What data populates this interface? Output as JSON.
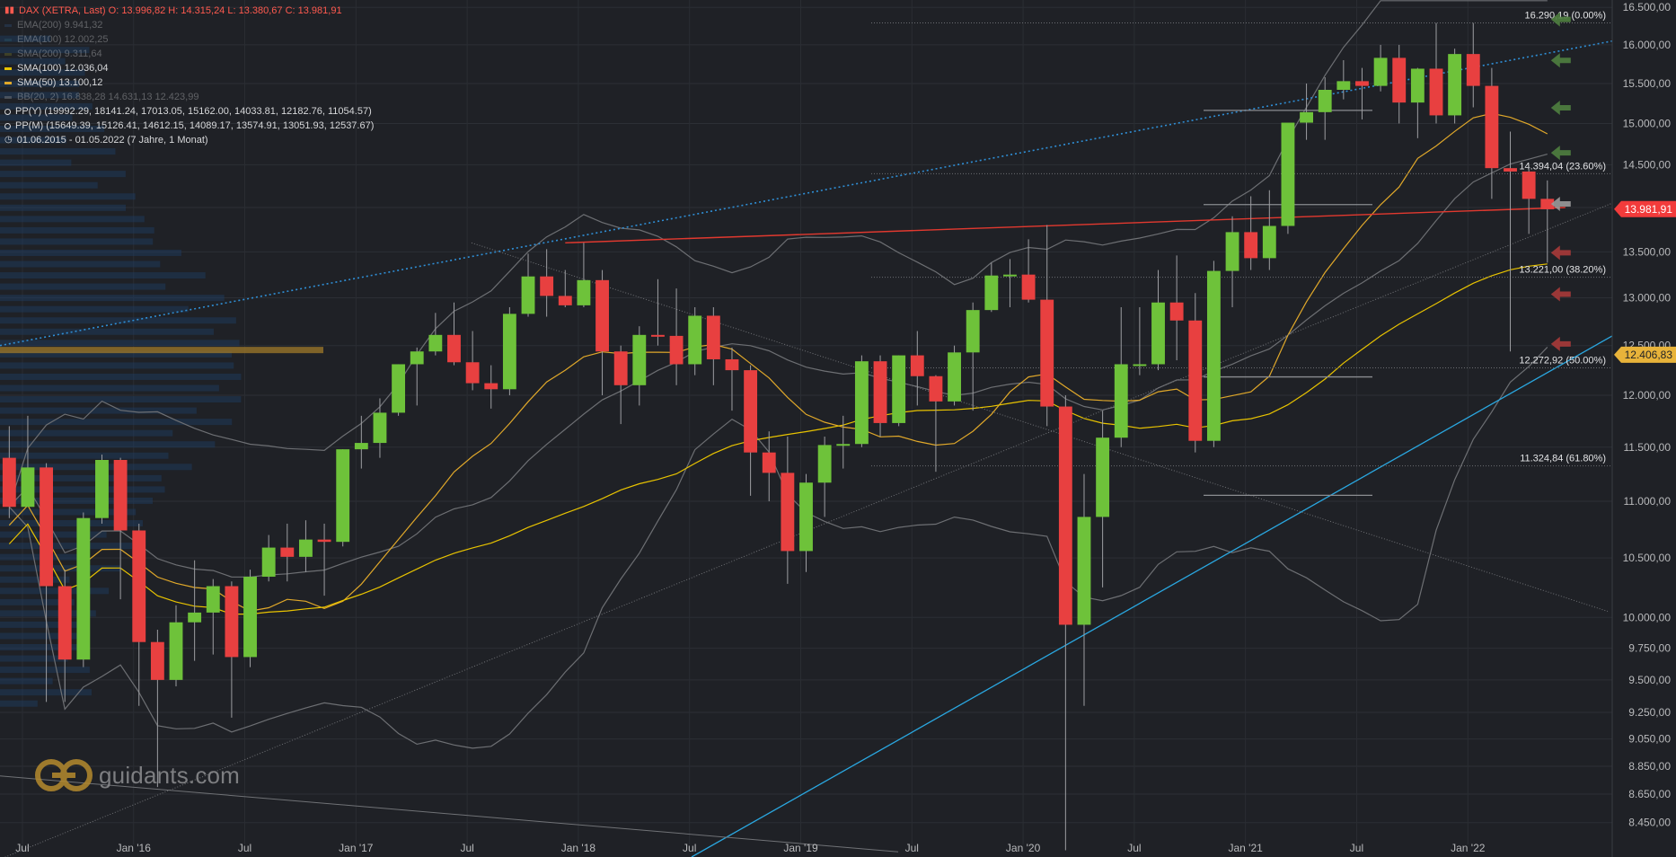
{
  "legend": {
    "title": "DAX (XETRA, Last)  O: 13.996,82  H: 14.315,24  L: 13.380,67  C: 13.981,91",
    "items": [
      {
        "label": "EMA(200)  9.941,32",
        "color": "#2f4f7a",
        "dim": true
      },
      {
        "label": "EMA(100)  12.002,25",
        "color": "#2f5d6b",
        "dim": true
      },
      {
        "label": "SMA(200)  9.311,64",
        "color": "#7a7a2a",
        "dim": true
      },
      {
        "label": "SMA(100)  12.036,04",
        "color": "#e8c300",
        "dim": false
      },
      {
        "label": "SMA(50)  13.100,12",
        "color": "#e0a82a",
        "dim": false
      },
      {
        "label": "BB(20, 2)  16.838,28  14.631,13  12.423,99",
        "color": "#9a9a9a",
        "dim": true
      }
    ],
    "pivots": [
      "PP(Y)  (19992.29, 18141.24, 17013.05, 15162.00, 14033.81, 12182.76, 11054.57)",
      "PP(M)  (15649.39, 15126.41, 14612.15, 14089.17, 13574.91, 13051.93, 12537.67)"
    ],
    "range": "01.06.2015 - 01.05.2022   (7 Jahre, 1 Monat)"
  },
  "logo_text": "guidants.com",
  "chart_data": {
    "type": "candlestick",
    "title": "DAX (XETRA, Last)",
    "y_axis": {
      "scale": "log",
      "range": [
        8300,
        16600
      ],
      "ticks": [
        8450,
        8650,
        8850,
        9050,
        9250,
        9500,
        9750,
        10000,
        10500,
        11000,
        11500,
        12000,
        12500,
        13000,
        13500,
        14000,
        14500,
        15000,
        15500,
        16000,
        16500
      ],
      "tick_labels": [
        "8.450,00",
        "8.650,00",
        "8.850,00",
        "9.050,00",
        "9.250,00",
        "9.500,00",
        "9.750,00",
        "10.000,00",
        "10.500,00",
        "11.000,00",
        "11.500,00",
        "12.000,00",
        "12.500,00",
        "13.000,00",
        "13.500,00",
        "14.000,00",
        "14.500,00",
        "15.000,00",
        "15.500,00",
        "16.000,00",
        "16.500,00"
      ]
    },
    "x_axis": {
      "range": [
        "2015-06",
        "2022-09"
      ],
      "ticks": [
        "2015-07",
        "2016-01",
        "2016-07",
        "2017-01",
        "2017-07",
        "2018-01",
        "2018-07",
        "2019-01",
        "2019-07",
        "2020-01",
        "2020-07",
        "2021-01",
        "2021-07",
        "2022-01"
      ],
      "tick_labels": [
        "Jul",
        "Jan '16",
        "Jul",
        "Jan '17",
        "Jul",
        "Jan '18",
        "Jul",
        "Jan '19",
        "Jul",
        "Jan '20",
        "Jul",
        "Jan '21",
        "Jul",
        "Jan '22"
      ]
    },
    "price_tags": [
      {
        "label": "13.981,91",
        "value": 13981.91,
        "color": "#f23b3b"
      },
      {
        "label": "12.406,83",
        "value": 12406.83,
        "color": "#e8b33a"
      }
    ],
    "fib_levels": [
      {
        "label": "16.290,19 (0.00%)",
        "value": 16290.19
      },
      {
        "label": "14.394,04 (23.60%)",
        "value": 14394.04
      },
      {
        "label": "13.221,00 (38.20%)",
        "value": 13221.0
      },
      {
        "label": "12.272,92 (50.00%)",
        "value": 12272.92
      },
      {
        "label": "11.324,84 (61.80%)",
        "value": 11324.84
      }
    ],
    "candles": [
      {
        "date": "2015-06",
        "o": 11400,
        "h": 11700,
        "l": 10850,
        "c": 10950
      },
      {
        "date": "2015-07",
        "o": 10950,
        "h": 11800,
        "l": 10950,
        "c": 11310
      },
      {
        "date": "2015-08",
        "o": 11310,
        "h": 11350,
        "l": 9330,
        "c": 10260
      },
      {
        "date": "2015-09",
        "o": 10260,
        "h": 10400,
        "l": 9330,
        "c": 9660
      },
      {
        "date": "2015-10",
        "o": 9660,
        "h": 10900,
        "l": 9600,
        "c": 10850
      },
      {
        "date": "2015-11",
        "o": 10850,
        "h": 11430,
        "l": 10800,
        "c": 11380
      },
      {
        "date": "2015-12",
        "o": 11380,
        "h": 11400,
        "l": 10150,
        "c": 10740
      },
      {
        "date": "2016-01",
        "o": 10740,
        "h": 10800,
        "l": 9300,
        "c": 9800
      },
      {
        "date": "2016-02",
        "o": 9800,
        "h": 9900,
        "l": 8700,
        "c": 9500
      },
      {
        "date": "2016-03",
        "o": 9500,
        "h": 10100,
        "l": 9450,
        "c": 9960
      },
      {
        "date": "2016-04",
        "o": 9960,
        "h": 10480,
        "l": 9650,
        "c": 10040
      },
      {
        "date": "2016-05",
        "o": 10040,
        "h": 10320,
        "l": 9700,
        "c": 10260
      },
      {
        "date": "2016-06",
        "o": 10260,
        "h": 10300,
        "l": 9210,
        "c": 9680
      },
      {
        "date": "2016-07",
        "o": 9680,
        "h": 10400,
        "l": 9600,
        "c": 10340
      },
      {
        "date": "2016-08",
        "o": 10340,
        "h": 10700,
        "l": 10300,
        "c": 10590
      },
      {
        "date": "2016-09",
        "o": 10590,
        "h": 10800,
        "l": 10300,
        "c": 10510
      },
      {
        "date": "2016-10",
        "o": 10510,
        "h": 10830,
        "l": 10380,
        "c": 10660
      },
      {
        "date": "2016-11",
        "o": 10660,
        "h": 10800,
        "l": 10180,
        "c": 10640
      },
      {
        "date": "2016-12",
        "o": 10640,
        "h": 11480,
        "l": 10600,
        "c": 11480
      },
      {
        "date": "2017-01",
        "o": 11480,
        "h": 11800,
        "l": 11300,
        "c": 11540
      },
      {
        "date": "2017-02",
        "o": 11540,
        "h": 11970,
        "l": 11400,
        "c": 11830
      },
      {
        "date": "2017-03",
        "o": 11830,
        "h": 12310,
        "l": 11800,
        "c": 12310
      },
      {
        "date": "2017-04",
        "o": 12310,
        "h": 12480,
        "l": 11900,
        "c": 12440
      },
      {
        "date": "2017-05",
        "o": 12440,
        "h": 12840,
        "l": 12400,
        "c": 12610
      },
      {
        "date": "2017-06",
        "o": 12610,
        "h": 12950,
        "l": 12300,
        "c": 12330
      },
      {
        "date": "2017-07",
        "o": 12330,
        "h": 12650,
        "l": 12050,
        "c": 12120
      },
      {
        "date": "2017-08",
        "o": 12120,
        "h": 12300,
        "l": 11870,
        "c": 12060
      },
      {
        "date": "2017-09",
        "o": 12060,
        "h": 12900,
        "l": 12000,
        "c": 12830
      },
      {
        "date": "2017-10",
        "o": 12830,
        "h": 13480,
        "l": 12800,
        "c": 13230
      },
      {
        "date": "2017-11",
        "o": 13230,
        "h": 13530,
        "l": 12800,
        "c": 13020
      },
      {
        "date": "2017-12",
        "o": 13020,
        "h": 13300,
        "l": 12900,
        "c": 12920
      },
      {
        "date": "2018-01",
        "o": 12920,
        "h": 13600,
        "l": 12900,
        "c": 13190
      },
      {
        "date": "2018-02",
        "o": 13190,
        "h": 13300,
        "l": 12000,
        "c": 12440
      },
      {
        "date": "2018-03",
        "o": 12440,
        "h": 12500,
        "l": 11720,
        "c": 12100
      },
      {
        "date": "2018-04",
        "o": 12100,
        "h": 12700,
        "l": 11900,
        "c": 12610
      },
      {
        "date": "2018-05",
        "o": 12610,
        "h": 13200,
        "l": 12500,
        "c": 12600
      },
      {
        "date": "2018-06",
        "o": 12600,
        "h": 13100,
        "l": 12100,
        "c": 12310
      },
      {
        "date": "2018-07",
        "o": 12310,
        "h": 12900,
        "l": 12200,
        "c": 12810
      },
      {
        "date": "2018-08",
        "o": 12810,
        "h": 12900,
        "l": 12100,
        "c": 12360
      },
      {
        "date": "2018-09",
        "o": 12360,
        "h": 12480,
        "l": 11850,
        "c": 12250
      },
      {
        "date": "2018-10",
        "o": 12250,
        "h": 12300,
        "l": 11050,
        "c": 11450
      },
      {
        "date": "2018-11",
        "o": 11450,
        "h": 11650,
        "l": 11000,
        "c": 11260
      },
      {
        "date": "2018-12",
        "o": 11260,
        "h": 11600,
        "l": 10280,
        "c": 10560
      },
      {
        "date": "2019-01",
        "o": 10560,
        "h": 11250,
        "l": 10380,
        "c": 11170
      },
      {
        "date": "2019-02",
        "o": 11170,
        "h": 11600,
        "l": 10860,
        "c": 11520
      },
      {
        "date": "2019-03",
        "o": 11520,
        "h": 11800,
        "l": 11300,
        "c": 11530
      },
      {
        "date": "2019-04",
        "o": 11530,
        "h": 12400,
        "l": 11500,
        "c": 12340
      },
      {
        "date": "2019-05",
        "o": 12340,
        "h": 12400,
        "l": 11600,
        "c": 11730
      },
      {
        "date": "2019-06",
        "o": 11730,
        "h": 12400,
        "l": 11700,
        "c": 12400
      },
      {
        "date": "2019-07",
        "o": 12400,
        "h": 12650,
        "l": 11900,
        "c": 12190
      },
      {
        "date": "2019-08",
        "o": 12190,
        "h": 12200,
        "l": 11270,
        "c": 11940
      },
      {
        "date": "2019-09",
        "o": 11940,
        "h": 12500,
        "l": 11900,
        "c": 12430
      },
      {
        "date": "2019-10",
        "o": 12430,
        "h": 12950,
        "l": 11850,
        "c": 12870
      },
      {
        "date": "2019-11",
        "o": 12870,
        "h": 13380,
        "l": 12850,
        "c": 13240
      },
      {
        "date": "2019-12",
        "o": 13240,
        "h": 13420,
        "l": 12900,
        "c": 13250
      },
      {
        "date": "2020-01",
        "o": 13250,
        "h": 13640,
        "l": 12950,
        "c": 12980
      },
      {
        "date": "2020-02",
        "o": 12980,
        "h": 13800,
        "l": 11700,
        "c": 11890
      },
      {
        "date": "2020-03",
        "o": 11890,
        "h": 12000,
        "l": 8260,
        "c": 9940
      },
      {
        "date": "2020-04",
        "o": 9940,
        "h": 11250,
        "l": 9300,
        "c": 10860
      },
      {
        "date": "2020-05",
        "o": 10860,
        "h": 11850,
        "l": 10250,
        "c": 11590
      },
      {
        "date": "2020-06",
        "o": 11590,
        "h": 12900,
        "l": 11500,
        "c": 12310
      },
      {
        "date": "2020-07",
        "o": 12310,
        "h": 12900,
        "l": 12200,
        "c": 12310
      },
      {
        "date": "2020-08",
        "o": 12310,
        "h": 13300,
        "l": 12250,
        "c": 12950
      },
      {
        "date": "2020-09",
        "o": 12950,
        "h": 13460,
        "l": 12350,
        "c": 12760
      },
      {
        "date": "2020-10",
        "o": 12760,
        "h": 13050,
        "l": 11450,
        "c": 11560
      },
      {
        "date": "2020-11",
        "o": 11560,
        "h": 13400,
        "l": 11500,
        "c": 13290
      },
      {
        "date": "2020-12",
        "o": 13290,
        "h": 13900,
        "l": 12900,
        "c": 13720
      },
      {
        "date": "2021-01",
        "o": 13720,
        "h": 14130,
        "l": 13300,
        "c": 13430
      },
      {
        "date": "2021-02",
        "o": 13430,
        "h": 14200,
        "l": 13300,
        "c": 13790
      },
      {
        "date": "2021-03",
        "o": 13790,
        "h": 15000,
        "l": 13700,
        "c": 15010
      },
      {
        "date": "2021-04",
        "o": 15010,
        "h": 15500,
        "l": 14800,
        "c": 15140
      },
      {
        "date": "2021-05",
        "o": 15140,
        "h": 15580,
        "l": 14800,
        "c": 15420
      },
      {
        "date": "2021-06",
        "o": 15420,
        "h": 15800,
        "l": 15300,
        "c": 15530
      },
      {
        "date": "2021-07",
        "o": 15530,
        "h": 15700,
        "l": 15050,
        "c": 15470
      },
      {
        "date": "2021-08",
        "o": 15470,
        "h": 16000,
        "l": 15400,
        "c": 15830
      },
      {
        "date": "2021-09",
        "o": 15830,
        "h": 16000,
        "l": 15000,
        "c": 15260
      },
      {
        "date": "2021-10",
        "o": 15260,
        "h": 15700,
        "l": 14820,
        "c": 15690
      },
      {
        "date": "2021-11",
        "o": 15690,
        "h": 16290,
        "l": 15000,
        "c": 15100
      },
      {
        "date": "2021-12",
        "o": 15100,
        "h": 15950,
        "l": 15000,
        "c": 15880
      },
      {
        "date": "2022-01",
        "o": 15880,
        "h": 16290,
        "l": 15200,
        "c": 15470
      },
      {
        "date": "2022-02",
        "o": 15470,
        "h": 15700,
        "l": 14100,
        "c": 14460
      },
      {
        "date": "2022-03",
        "o": 14460,
        "h": 14900,
        "l": 12440,
        "c": 14420
      },
      {
        "date": "2022-04",
        "o": 14420,
        "h": 14500,
        "l": 13700,
        "c": 14100
      },
      {
        "date": "2022-05",
        "o": 14100,
        "h": 14315,
        "l": 13380,
        "c": 13980
      }
    ]
  }
}
